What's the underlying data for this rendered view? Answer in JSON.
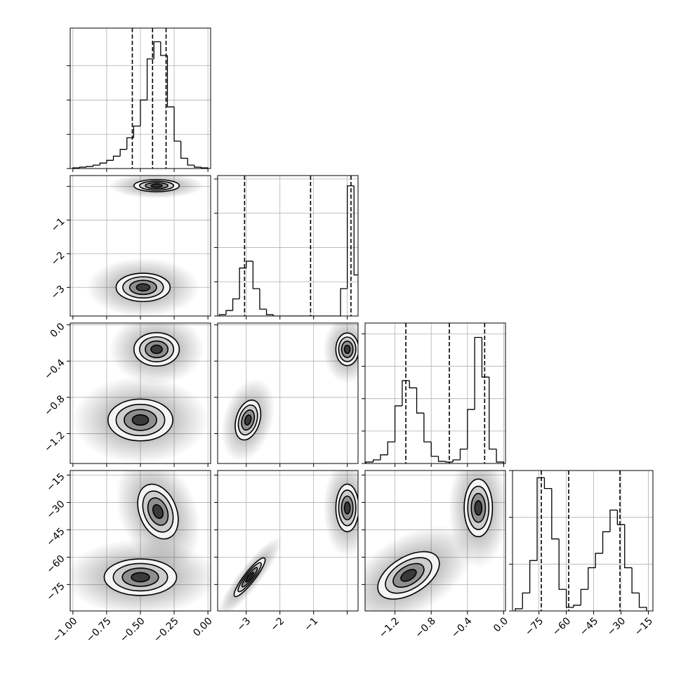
{
  "chart_data": [
    {
      "type": "histogram",
      "color": "#000000",
      "grid": true,
      "bins": [
        -1,
        -0.95,
        -0.9,
        -0.85,
        -0.8,
        -0.75,
        -0.7,
        -0.65,
        -0.6,
        -0.55,
        -0.5,
        -0.45,
        -0.4,
        -0.35,
        -0.3,
        -0.25,
        -0.2,
        -0.15,
        -0.1,
        -0.05,
        0
      ],
      "values": [
        1,
        2,
        3,
        5,
        8,
        12,
        18,
        28,
        45,
        62,
        100,
        160,
        185,
        165,
        90,
        40,
        15,
        5,
        2,
        1
      ],
      "quantiles": [
        -0.56,
        -0.41,
        -0.31
      ],
      "xlim": [
        -1.02,
        0.02
      ],
      "xticks": [
        -1,
        -0.75,
        -0.5,
        -0.25,
        0
      ],
      "ylim": [
        0,
        205
      ],
      "yticks": [
        0,
        50,
        100,
        150
      ]
    },
    {
      "type": "contour",
      "grid": true,
      "levels": [
        0.5,
        1,
        1.5,
        2
      ],
      "clusters": [
        {
          "x": -0.38,
          "y": 0.02,
          "sx": 0.084,
          "sy": 0.09,
          "corr": 0
        },
        {
          "x": -0.48,
          "y": -3,
          "sx": 0.1,
          "sy": 0.21,
          "corr": 0
        }
      ],
      "xlim": [
        -1.02,
        0.02
      ],
      "xticks": [
        -1,
        -0.75,
        -0.5,
        -0.25,
        0
      ],
      "ylim": [
        -3.85,
        0.32
      ],
      "yticks": [
        {
          "value": -3,
          "label": "−3"
        },
        {
          "value": -2,
          "label": "−2"
        },
        {
          "value": -1,
          "label": "−1"
        },
        0
      ]
    },
    {
      "type": "histogram",
      "color": "#000000",
      "grid": true,
      "bins": [
        -3.8,
        -3.6,
        -3.4,
        -3.2,
        -3,
        -2.8,
        -2.6,
        -2.4,
        -2.2,
        -2,
        -1.8,
        -1.6,
        -1.4,
        -1.2,
        -1,
        -0.8,
        -0.6,
        -0.4,
        -0.2,
        0,
        0.2,
        0.4
      ],
      "values": [
        2,
        8,
        25,
        70,
        80,
        40,
        10,
        2,
        0,
        0,
        0,
        0,
        0,
        0,
        0,
        0,
        0,
        0,
        40,
        190,
        60
      ],
      "quantiles": [
        -3.05,
        -1.09,
        0.11
      ],
      "xlim": [
        -3.85,
        0.32
      ],
      "xticks": [
        -3,
        -2,
        -1,
        0
      ],
      "ylim": [
        0,
        205
      ],
      "yticks": [
        0,
        50,
        100,
        150,
        200
      ]
    },
    {
      "type": "contour",
      "grid": true,
      "levels": [
        0.5,
        1,
        1.5,
        2
      ],
      "clusters": [
        {
          "x": -0.38,
          "y": -0.27,
          "sx": 0.084,
          "sy": 0.092,
          "corr": 0
        },
        {
          "x": -0.5,
          "y": -1.05,
          "sx": 0.12,
          "sy": 0.115,
          "corr": 0
        }
      ],
      "xlim": [
        -1.02,
        0.02
      ],
      "xticks": [
        -1,
        -0.75,
        -0.5,
        -0.25,
        0
      ],
      "ylim": [
        -1.53,
        0.02
      ],
      "yticks": [
        {
          "value": -1.2,
          "label": "−1.2"
        },
        {
          "value": -0.8,
          "label": "−0.8"
        },
        {
          "value": -0.4,
          "label": "−0.4"
        },
        {
          "value": 0,
          "label": "0.0"
        }
      ]
    },
    {
      "type": "contour",
      "grid": true,
      "levels": [
        0.5,
        1,
        1.5,
        2
      ],
      "clusters": [
        {
          "x": 0,
          "y": -0.27,
          "sx": 0.17,
          "sy": 0.09,
          "corr": 0
        },
        {
          "x": -2.95,
          "y": -1.05,
          "sx": 0.19,
          "sy": 0.11,
          "corr": 0.3
        }
      ],
      "xlim": [
        -3.85,
        0.32
      ],
      "xticks": [
        -3,
        -2,
        -1,
        0
      ],
      "ylim": [
        -1.53,
        0.02
      ],
      "yticks": [
        -1.2,
        -0.8,
        -0.4,
        0
      ]
    },
    {
      "type": "histogram",
      "color": "#000000",
      "grid": true,
      "bins": [
        -1.52,
        -1.44,
        -1.36,
        -1.28,
        -1.2,
        -1.12,
        -1.04,
        -0.96,
        -0.88,
        -0.8,
        -0.72,
        -0.64,
        -0.56,
        -0.48,
        -0.4,
        -0.32,
        -0.24,
        -0.16,
        -0.08,
        0
      ],
      "values": [
        2,
        5,
        12,
        30,
        80,
        115,
        105,
        70,
        30,
        10,
        3,
        2,
        5,
        20,
        75,
        175,
        120,
        20,
        2
      ],
      "quantiles": [
        -1.08,
        -0.6,
        -0.21
      ],
      "xlim": [
        -1.53,
        0.02
      ],
      "xticks": [
        -1.2,
        -0.8,
        -0.4,
        0
      ],
      "ylim": [
        0,
        195
      ],
      "yticks": [
        0,
        45,
        90,
        135,
        180
      ]
    },
    {
      "type": "contour",
      "grid": true,
      "levels": [
        0.5,
        1,
        1.5,
        2
      ],
      "clusters": [
        {
          "x": -0.37,
          "y": -35,
          "sx": 0.075,
          "sy": 7.5,
          "corr": -0.3
        },
        {
          "x": -0.5,
          "y": -71,
          "sx": 0.134,
          "sy": 5,
          "corr": 0
        }
      ],
      "xlim": [
        -1.02,
        0.02
      ],
      "xticks": [
        {
          "value": -1,
          "label": "−1.00"
        },
        {
          "value": -0.75,
          "label": "−0.75"
        },
        {
          "value": -0.5,
          "label": "−0.50"
        },
        {
          "value": -0.25,
          "label": "−0.25"
        },
        {
          "value": 0,
          "label": "0.00"
        }
      ],
      "ylim": [
        -89.5,
        -12.5
      ],
      "yticks": [
        {
          "value": -75,
          "label": "−75"
        },
        {
          "value": -60,
          "label": "−60"
        },
        {
          "value": -45,
          "label": "−45"
        },
        {
          "value": -30,
          "label": "−30"
        },
        {
          "value": -15,
          "label": "−15"
        }
      ]
    },
    {
      "type": "contour",
      "grid": true,
      "levels": [
        0.5,
        1,
        1.5,
        2
      ],
      "clusters": [
        {
          "x": 0,
          "y": -33,
          "sx": 0.17,
          "sy": 6.5,
          "corr": 0
        },
        {
          "x": -2.9,
          "y": -71,
          "sx": 0.23,
          "sy": 5.3,
          "corr": 0.9
        }
      ],
      "xlim": [
        -3.85,
        0.32
      ],
      "xticks": [
        {
          "value": -3,
          "label": "−3"
        },
        {
          "value": -2,
          "label": "−2"
        },
        {
          "value": -1,
          "label": "−1"
        },
        0
      ],
      "ylim": [
        -89.5,
        -12.5
      ],
      "yticks": [
        -75,
        -60,
        -45,
        -30,
        -15
      ]
    },
    {
      "type": "contour",
      "grid": true,
      "levels": [
        0.5,
        1,
        1.5,
        2
      ],
      "clusters": [
        {
          "x": -0.28,
          "y": -33,
          "sx": 0.078,
          "sy": 7.9,
          "corr": 0
        },
        {
          "x": -1.05,
          "y": -70,
          "sx": 0.17,
          "sy": 6.5,
          "corr": 0.5
        }
      ],
      "xlim": [
        -1.53,
        0.02
      ],
      "xticks": [
        {
          "value": -1.2,
          "label": "−1.2"
        },
        {
          "value": -0.8,
          "label": "−0.8"
        },
        {
          "value": -0.4,
          "label": "−0.4"
        },
        {
          "value": 0,
          "label": "0.0"
        }
      ],
      "ylim": [
        -89.5,
        -12.5
      ],
      "yticks": [
        -75,
        -60,
        -45,
        -30,
        -15
      ]
    },
    {
      "type": "histogram",
      "color": "#000000",
      "grid": true,
      "bins": [
        -88,
        -84,
        -80,
        -76,
        -72,
        -68,
        -64,
        -60,
        -56,
        -52,
        -48,
        -44,
        -40,
        -36,
        -32,
        -28,
        -24,
        -20,
        -16
      ],
      "values": [
        3,
        25,
        70,
        185,
        170,
        100,
        30,
        5,
        8,
        30,
        60,
        80,
        110,
        140,
        120,
        60,
        25,
        5
      ],
      "quantiles": [
        -73.7,
        -58.7,
        -30.6
      ],
      "xlim": [
        -89.5,
        -12.5
      ],
      "xticks": [
        {
          "value": -75,
          "label": "−75"
        },
        {
          "value": -60,
          "label": "−60"
        },
        {
          "value": -45,
          "label": "−45"
        },
        {
          "value": -30,
          "label": "−30"
        },
        {
          "value": -15,
          "label": "−15"
        }
      ],
      "ylim": [
        0,
        195
      ],
      "yticks": [
        0,
        65,
        130,
        195
      ]
    }
  ]
}
